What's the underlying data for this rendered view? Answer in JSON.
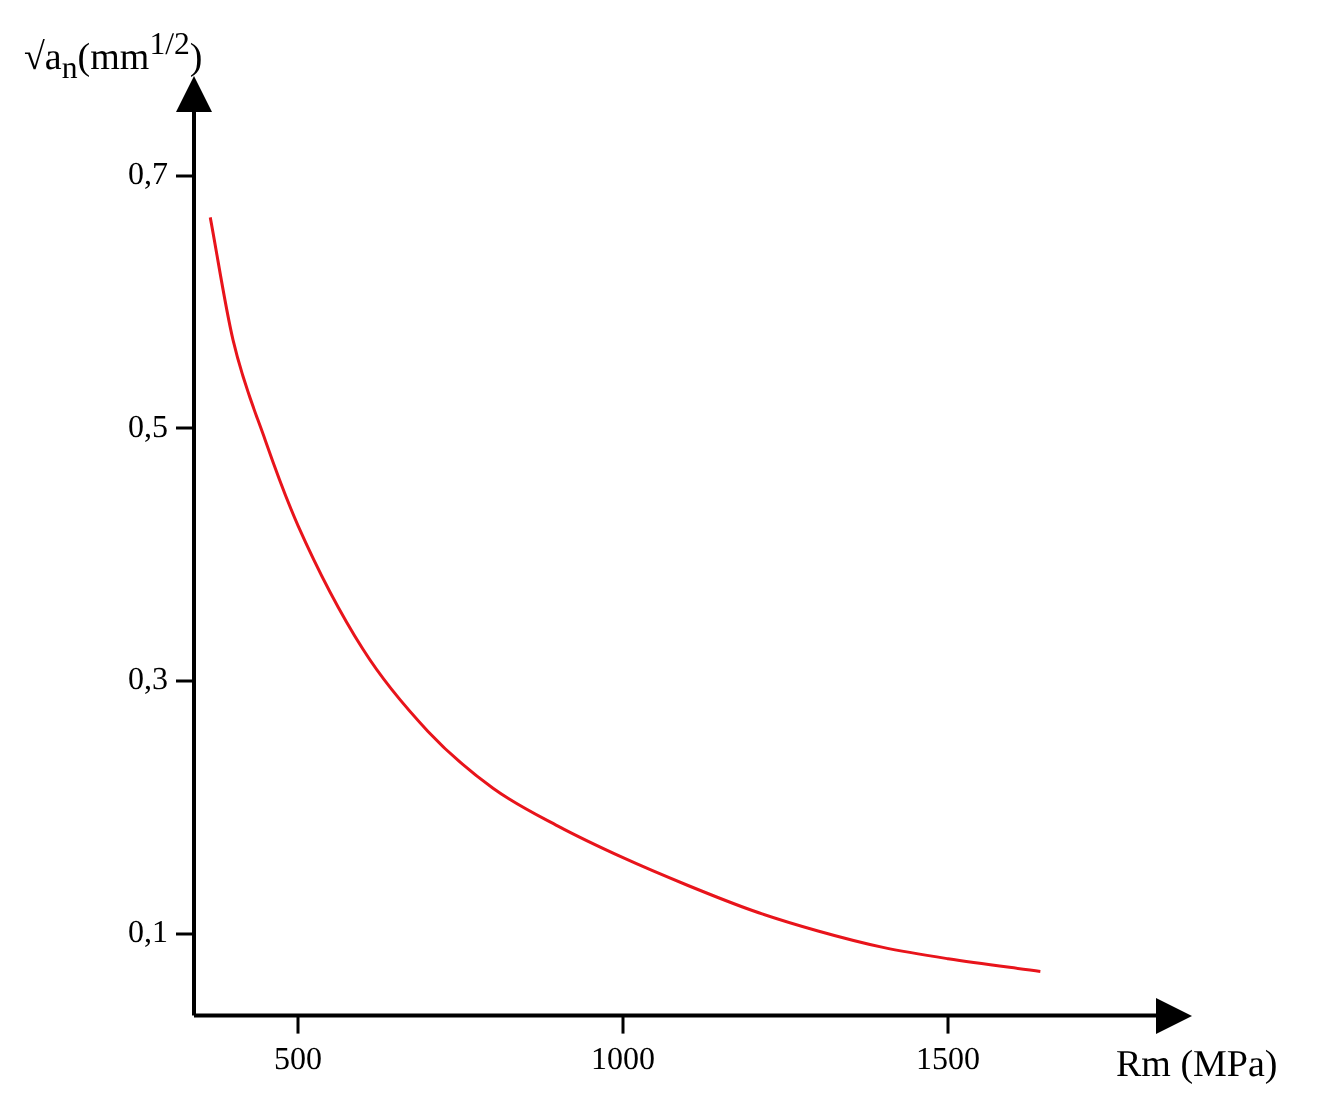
{
  "chart_data": {
    "type": "line",
    "xlabel": "Rm (MPa)",
    "ylabel": "√a$_{n}$(mm$^{1/2}$)",
    "x": [
      365,
      400,
      450,
      500,
      600,
      700,
      800,
      900,
      1000,
      1100,
      1200,
      1300,
      1400,
      1500,
      1642
    ],
    "series": [
      {
        "color": "#e8141b",
        "values": [
          0.667,
          0.57,
          0.49,
          0.423,
          0.325,
          0.26,
          0.215,
          0.185,
          0.16,
          0.138,
          0.118,
          0.102,
          0.089,
          0.08,
          0.07
        ]
      }
    ],
    "xlim": [
      340,
      1823
    ],
    "ylim": [
      0.035,
      0.752
    ],
    "xticks": [
      500,
      1000,
      1500
    ],
    "yticks": [
      {
        "value": 0.1,
        "label": "0,1"
      },
      {
        "value": 0.3,
        "label": "0,3"
      },
      {
        "value": 0.5,
        "label": "0,5"
      },
      {
        "value": 0.7,
        "label": "0,7"
      }
    ],
    "grid": false,
    "legend": false,
    "marker": "none",
    "line_style": "solid"
  }
}
